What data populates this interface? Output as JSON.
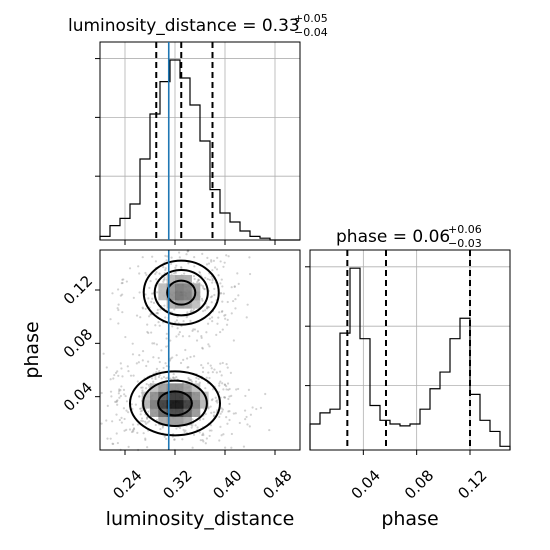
{
  "chart_data": {
    "type": "corner",
    "parameters": [
      "luminosity_distance",
      "phase"
    ],
    "truths": {
      "luminosity_distance": 0.31
    },
    "luminosity_distance": {
      "title_name": "luminosity_distance",
      "median": "0.33",
      "plus": "+0.05",
      "minus": "−0.04",
      "quantiles": [
        0.29,
        0.33,
        0.38
      ],
      "range": [
        0.2,
        0.52
      ],
      "ticks": [
        0.24,
        0.32,
        0.4,
        0.48
      ],
      "tick_labels": [
        "0.24",
        "0.32",
        "0.40",
        "0.48"
      ],
      "axis_label": "luminosity_distance",
      "hist_edges": [
        0.2,
        0.216,
        0.232,
        0.248,
        0.264,
        0.28,
        0.296,
        0.312,
        0.328,
        0.344,
        0.36,
        0.376,
        0.392,
        0.408,
        0.424,
        0.44,
        0.456,
        0.472,
        0.488,
        0.504,
        0.52
      ],
      "hist_counts": [
        0.02,
        0.08,
        0.12,
        0.2,
        0.45,
        0.7,
        0.88,
        1.0,
        0.9,
        0.75,
        0.55,
        0.28,
        0.15,
        0.1,
        0.05,
        0.02,
        0.01,
        0.0,
        0.0,
        0.0
      ]
    },
    "phase": {
      "title_name": "phase",
      "median": "0.06",
      "plus": "+0.06",
      "minus": "−0.03",
      "quantiles": [
        0.028,
        0.057,
        0.12
      ],
      "range": [
        0.0,
        0.15
      ],
      "ticks": [
        0.04,
        0.08,
        0.12
      ],
      "tick_labels": [
        "0.04",
        "0.08",
        "0.12"
      ],
      "axis_label": "phase",
      "hist_edges": [
        0.0,
        0.0075,
        0.015,
        0.0225,
        0.03,
        0.0375,
        0.045,
        0.0525,
        0.06,
        0.0675,
        0.075,
        0.0825,
        0.09,
        0.0975,
        0.105,
        0.1125,
        0.12,
        0.1275,
        0.135,
        0.1425,
        0.15
      ],
      "hist_counts": [
        0.14,
        0.2,
        0.22,
        0.63,
        0.98,
        0.6,
        0.24,
        0.16,
        0.14,
        0.13,
        0.14,
        0.22,
        0.33,
        0.42,
        0.6,
        0.71,
        0.3,
        0.16,
        0.1,
        0.02
      ]
    },
    "joint_modes": [
      {
        "x": 0.32,
        "y": 0.035,
        "sx": 0.03,
        "sy": 0.01,
        "weight": 1.0
      },
      {
        "x": 0.33,
        "y": 0.118,
        "sx": 0.025,
        "sy": 0.01,
        "weight": 0.6
      }
    ]
  }
}
